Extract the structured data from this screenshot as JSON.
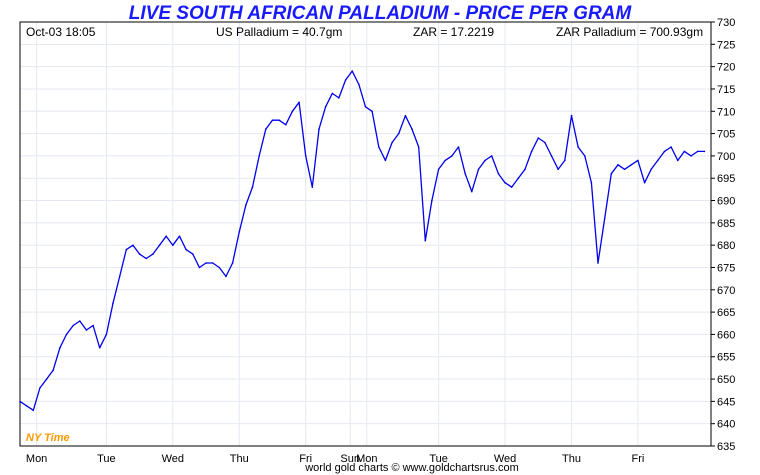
{
  "header": {
    "title": "LIVE SOUTH AFRICAN PALLADIUM - PRICE PER GRAM",
    "timestamp": "Oct-03  18:05",
    "us_price": "US Palladium = 40.7gm",
    "zar_rate": "ZAR = 17.2219",
    "zar_price": "ZAR Palladium = 700.93gm"
  },
  "timezone_label": "NY Time",
  "footer": "world gold charts © www.goldchartsrus.com",
  "colors": {
    "line": "#0000ee",
    "title": "#1a1aff",
    "grid": "#e4e8f0",
    "timezone": "#ff9900"
  },
  "chart_data": {
    "type": "line",
    "title": "LIVE SOUTH AFRICAN PALLADIUM - PRICE PER GRAM",
    "xlabel": "",
    "ylabel": "",
    "y_axis_position": "right",
    "ylim": [
      635,
      730
    ],
    "y_ticks": [
      635,
      640,
      645,
      650,
      655,
      660,
      665,
      670,
      675,
      680,
      685,
      690,
      695,
      700,
      705,
      710,
      715,
      720,
      725,
      730
    ],
    "x_ticks": [
      {
        "label": "Mon",
        "x": 0.25
      },
      {
        "label": "Tue",
        "x": 1.3
      },
      {
        "label": "Wed",
        "x": 2.3
      },
      {
        "label": "Thu",
        "x": 3.3
      },
      {
        "label": "Fri",
        "x": 4.3
      },
      {
        "label": "Sun",
        "x": 4.97
      },
      {
        "label": "Mon",
        "x": 5.22
      },
      {
        "label": "Tue",
        "x": 6.3
      },
      {
        "label": "Wed",
        "x": 7.3
      },
      {
        "label": "Thu",
        "x": 8.3
      },
      {
        "label": "Fri",
        "x": 9.3
      }
    ],
    "xlim": [
      0,
      10.4
    ],
    "grid": true,
    "series": [
      {
        "name": "",
        "x": [
          0,
          0.1,
          0.2,
          0.3,
          0.4,
          0.5,
          0.6,
          0.7,
          0.8,
          0.9,
          1.0,
          1.1,
          1.2,
          1.3,
          1.4,
          1.5,
          1.6,
          1.7,
          1.8,
          1.9,
          2.0,
          2.1,
          2.2,
          2.3,
          2.4,
          2.5,
          2.6,
          2.7,
          2.8,
          2.9,
          3.0,
          3.1,
          3.2,
          3.3,
          3.4,
          3.5,
          3.6,
          3.7,
          3.8,
          3.9,
          4.0,
          4.1,
          4.2,
          4.3,
          4.4,
          4.5,
          4.6,
          4.7,
          4.8,
          4.9,
          5.0,
          5.1,
          5.2,
          5.3,
          5.4,
          5.5,
          5.6,
          5.7,
          5.8,
          5.9,
          6.0,
          6.1,
          6.2,
          6.3,
          6.4,
          6.5,
          6.6,
          6.7,
          6.8,
          6.9,
          7.0,
          7.1,
          7.2,
          7.3,
          7.4,
          7.5,
          7.6,
          7.7,
          7.8,
          7.9,
          8.0,
          8.1,
          8.2,
          8.3,
          8.4,
          8.5,
          8.6,
          8.7,
          8.8,
          8.9,
          9.0,
          9.1,
          9.2,
          9.3,
          9.4,
          9.5,
          9.6,
          9.7,
          9.8,
          9.9,
          10.0,
          10.1,
          10.2,
          10.3
        ],
        "values": [
          645,
          644,
          643,
          648,
          650,
          652,
          657,
          660,
          662,
          663,
          661,
          662,
          657,
          660,
          667,
          673,
          679,
          680,
          678,
          677,
          678,
          680,
          682,
          680,
          682,
          679,
          678,
          675,
          676,
          676,
          675,
          673,
          676,
          683,
          689,
          693,
          700,
          706,
          708,
          708,
          707,
          710,
          712,
          700,
          693,
          706,
          711,
          714,
          713,
          717,
          719,
          716,
          711,
          710,
          702,
          699,
          703,
          705,
          709,
          706,
          702,
          681,
          690,
          697,
          699,
          700,
          702,
          696,
          692,
          697,
          699,
          700,
          696,
          694,
          693,
          695,
          697,
          701,
          704,
          703,
          700,
          697,
          699,
          709,
          702,
          700,
          694,
          676,
          686,
          696,
          698,
          697,
          698,
          699,
          694,
          697,
          699,
          701,
          702,
          699,
          701,
          700,
          701,
          701
        ]
      }
    ]
  }
}
